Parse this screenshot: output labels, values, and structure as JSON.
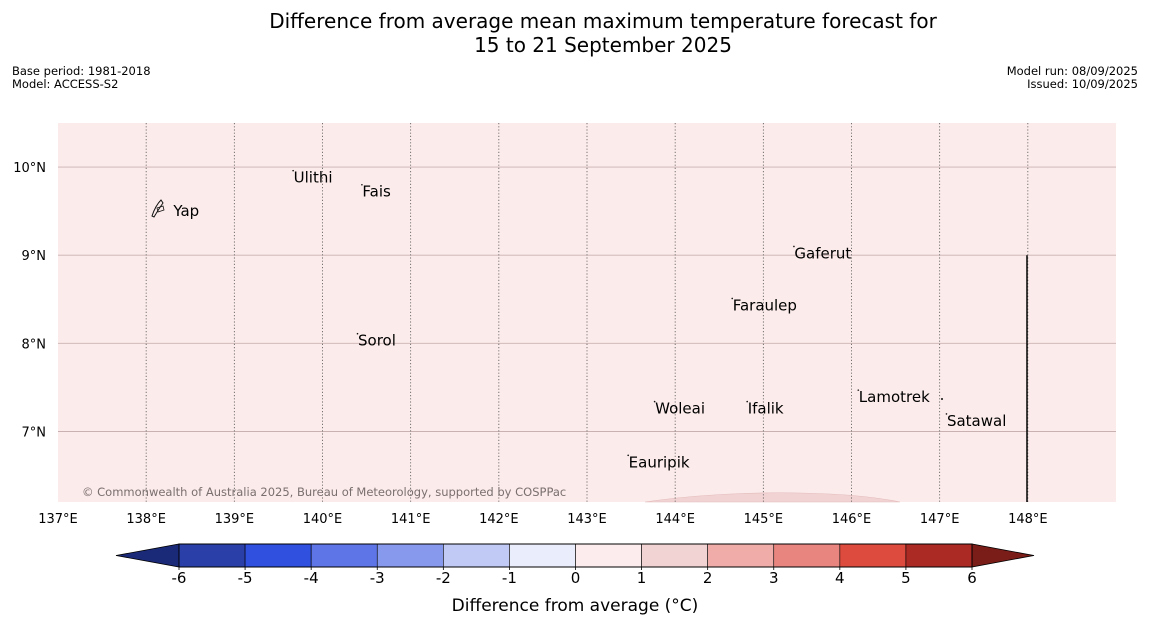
{
  "title": {
    "line1": "Difference from average mean maximum temperature forecast for",
    "line2": "15 to 21 September 2025"
  },
  "meta_left": {
    "base_period": "Base period: 1981-2018",
    "model": "Model: ACCESS-S2"
  },
  "meta_right": {
    "model_run": "Model run: 08/09/2025",
    "issued": "Issued: 10/09/2025"
  },
  "map": {
    "background_color": "#fbebea",
    "lon_range": [
      137,
      149
    ],
    "lat_range": [
      6.2,
      10.5
    ],
    "lon_ticks": [
      137,
      138,
      139,
      140,
      141,
      142,
      143,
      144,
      145,
      146,
      147,
      148
    ],
    "lon_labels": [
      "137°E",
      "138°E",
      "139°E",
      "140°E",
      "141°E",
      "142°E",
      "143°E",
      "144°E",
      "145°E",
      "146°E",
      "147°E",
      "148°E"
    ],
    "lat_ticks": [
      7,
      8,
      9,
      10
    ],
    "lat_labels": [
      "7°N",
      "8°N",
      "9°N",
      "10°N"
    ],
    "places": [
      {
        "name": "Yap",
        "lon": 138.15,
        "lat": 9.5
      },
      {
        "name": "Ulithi",
        "lon": 139.65,
        "lat": 9.88
      },
      {
        "name": "Fais",
        "lon": 140.43,
        "lat": 9.72
      },
      {
        "name": "Gaferut",
        "lon": 145.33,
        "lat": 9.02
      },
      {
        "name": "Faraulep",
        "lon": 144.63,
        "lat": 8.43
      },
      {
        "name": "Sorol",
        "lon": 140.38,
        "lat": 8.03
      },
      {
        "name": "Woleai",
        "lon": 143.75,
        "lat": 7.26
      },
      {
        "name": "Ifalik",
        "lon": 144.8,
        "lat": 7.26
      },
      {
        "name": "Lamotrek",
        "lon": 146.06,
        "lat": 7.39
      },
      {
        "name": "Satawal",
        "lon": 147.06,
        "lat": 7.12
      },
      {
        "name": "Eauripik",
        "lon": 143.45,
        "lat": 6.65
      }
    ],
    "copyright": "© Commonwealth of Australia 2025, Bureau of Meteorology, supported by COSPPac"
  },
  "colorbar": {
    "ticks": [
      "-6",
      "-5",
      "-4",
      "-3",
      "-2",
      "-1",
      "0",
      "1",
      "2",
      "3",
      "4",
      "5",
      "6"
    ],
    "colors": [
      "#2a3fa8",
      "#3050e0",
      "#5d75e6",
      "#8799ec",
      "#c1c9f5",
      "#eaedfc",
      "#fdeced",
      "#f2d3d4",
      "#efaca8",
      "#e8857f",
      "#dc4b3e",
      "#ab2a24"
    ],
    "under_color": "#1b2a78",
    "over_color": "#7a1c18",
    "label": "Difference from average (°C)"
  }
}
